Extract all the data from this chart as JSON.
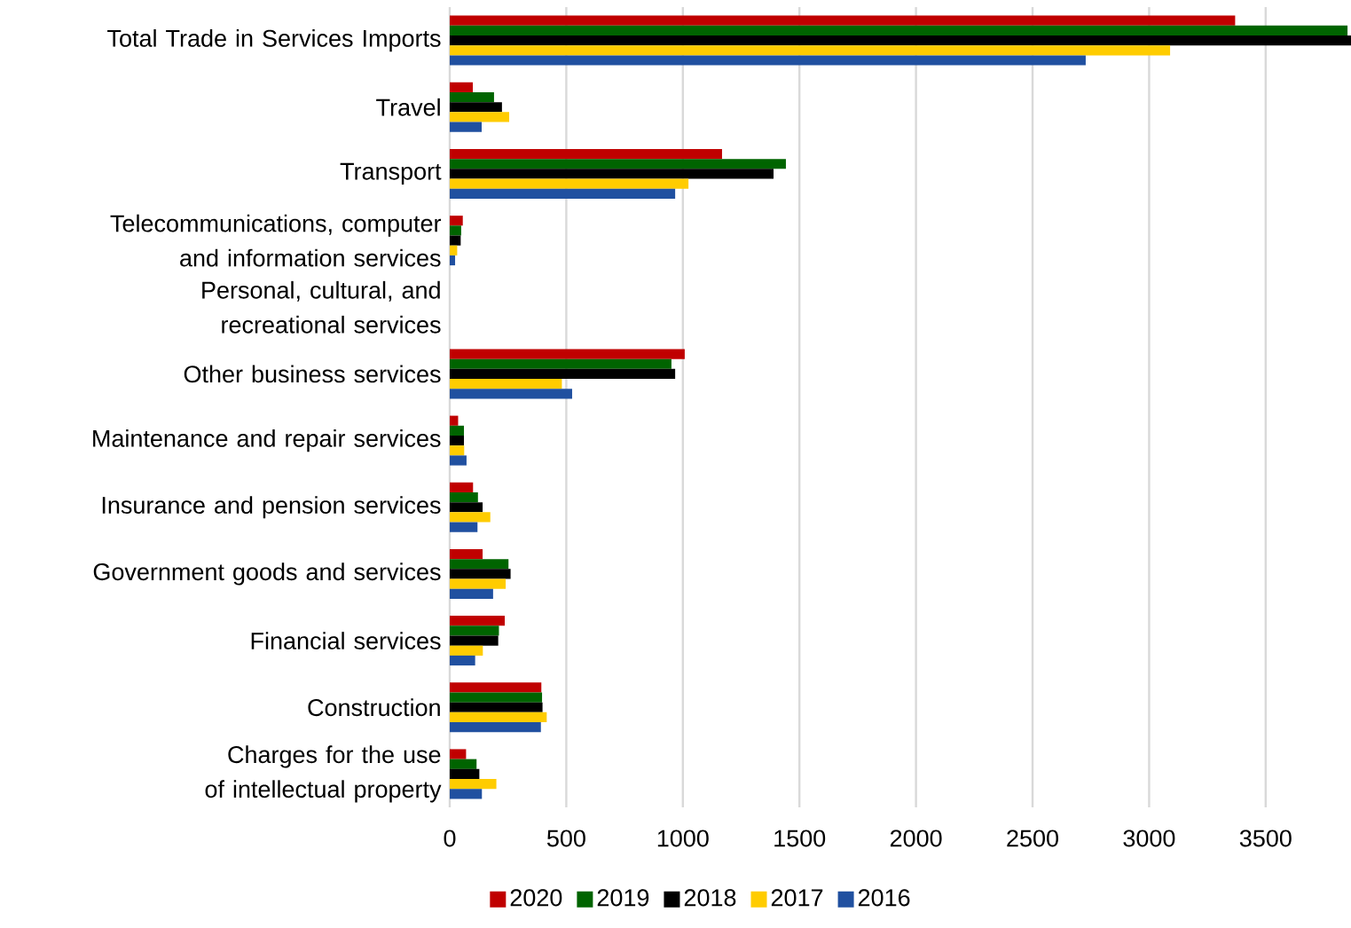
{
  "chart_data": {
    "type": "bar",
    "orientation": "horizontal",
    "categories": [
      "Total Trade in Services Imports",
      "Travel",
      "Transport",
      "Telecommunications, computer and information services",
      "Personal, cultural, and recreational services",
      "Other business services",
      "Maintenance and repair services",
      "Insurance and pension services",
      "Government goods and services",
      "Financial services",
      "Construction",
      "Charges for the use of intellectual property"
    ],
    "series": [
      {
        "name": "2020",
        "color": "#c00000",
        "values": [
          3369,
          99,
          1168,
          56,
          null,
          1008,
          36,
          100,
          141,
          236,
          393,
          70
        ]
      },
      {
        "name": "2019",
        "color": "#006400",
        "values": [
          3851,
          190,
          1442,
          49,
          null,
          951,
          61,
          121,
          252,
          211,
          396,
          115
        ]
      },
      {
        "name": "2018",
        "color": "#000000",
        "values": [
          3866,
          224,
          1389,
          47,
          null,
          967,
          61,
          141,
          261,
          208,
          398,
          127
        ]
      },
      {
        "name": "2017",
        "color": "#ffcc00",
        "values": [
          3090,
          255,
          1024,
          32,
          null,
          481,
          62,
          174,
          240,
          142,
          416,
          200
        ]
      },
      {
        "name": "2016",
        "color": "#2050a0",
        "values": [
          2728,
          137,
          967,
          23,
          null,
          525,
          72,
          119,
          186,
          109,
          391,
          138
        ]
      }
    ],
    "xlim": [
      0,
      3866
    ],
    "xticks": [
      0,
      500,
      1000,
      1500,
      2000,
      2500,
      3000,
      3500
    ],
    "grid": "x",
    "legend": "bottom"
  }
}
